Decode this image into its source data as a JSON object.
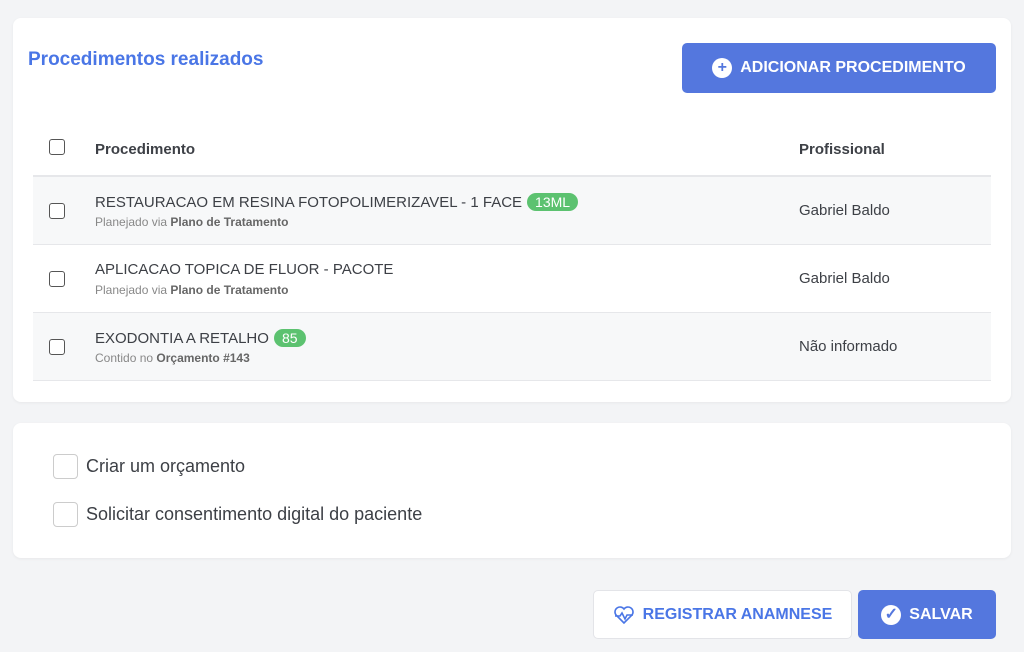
{
  "section": {
    "title": "Procedimentos realizados",
    "add_label": "ADICIONAR PROCEDIMENTO"
  },
  "table": {
    "headers": {
      "procedure": "Procedimento",
      "professional": "Profissional"
    },
    "rows": [
      {
        "name": "RESTAURACAO EM RESINA FOTOPOLIMERIZAVEL - 1 FACE",
        "badge": "13ML",
        "sub_prefix": "Planejado via",
        "sub_bold": "Plano de Tratamento",
        "professional": "Gabriel Baldo"
      },
      {
        "name": "APLICACAO TOPICA DE FLUOR - PACOTE",
        "badge": "",
        "sub_prefix": "Planejado via",
        "sub_bold": "Plano de Tratamento",
        "professional": "Gabriel Baldo"
      },
      {
        "name": "EXODONTIA A RETALHO",
        "badge": "85",
        "sub_prefix": "Contido no",
        "sub_bold": "Orçamento #143",
        "professional": "Não informado"
      }
    ]
  },
  "options": {
    "budget": "Criar um orçamento",
    "consent": "Solicitar consentimento digital do paciente"
  },
  "actions": {
    "anamnese": "REGISTRAR ANAMNESE",
    "save": "SALVAR"
  },
  "colors": {
    "accent": "#5477de",
    "badge": "#5cc270"
  }
}
